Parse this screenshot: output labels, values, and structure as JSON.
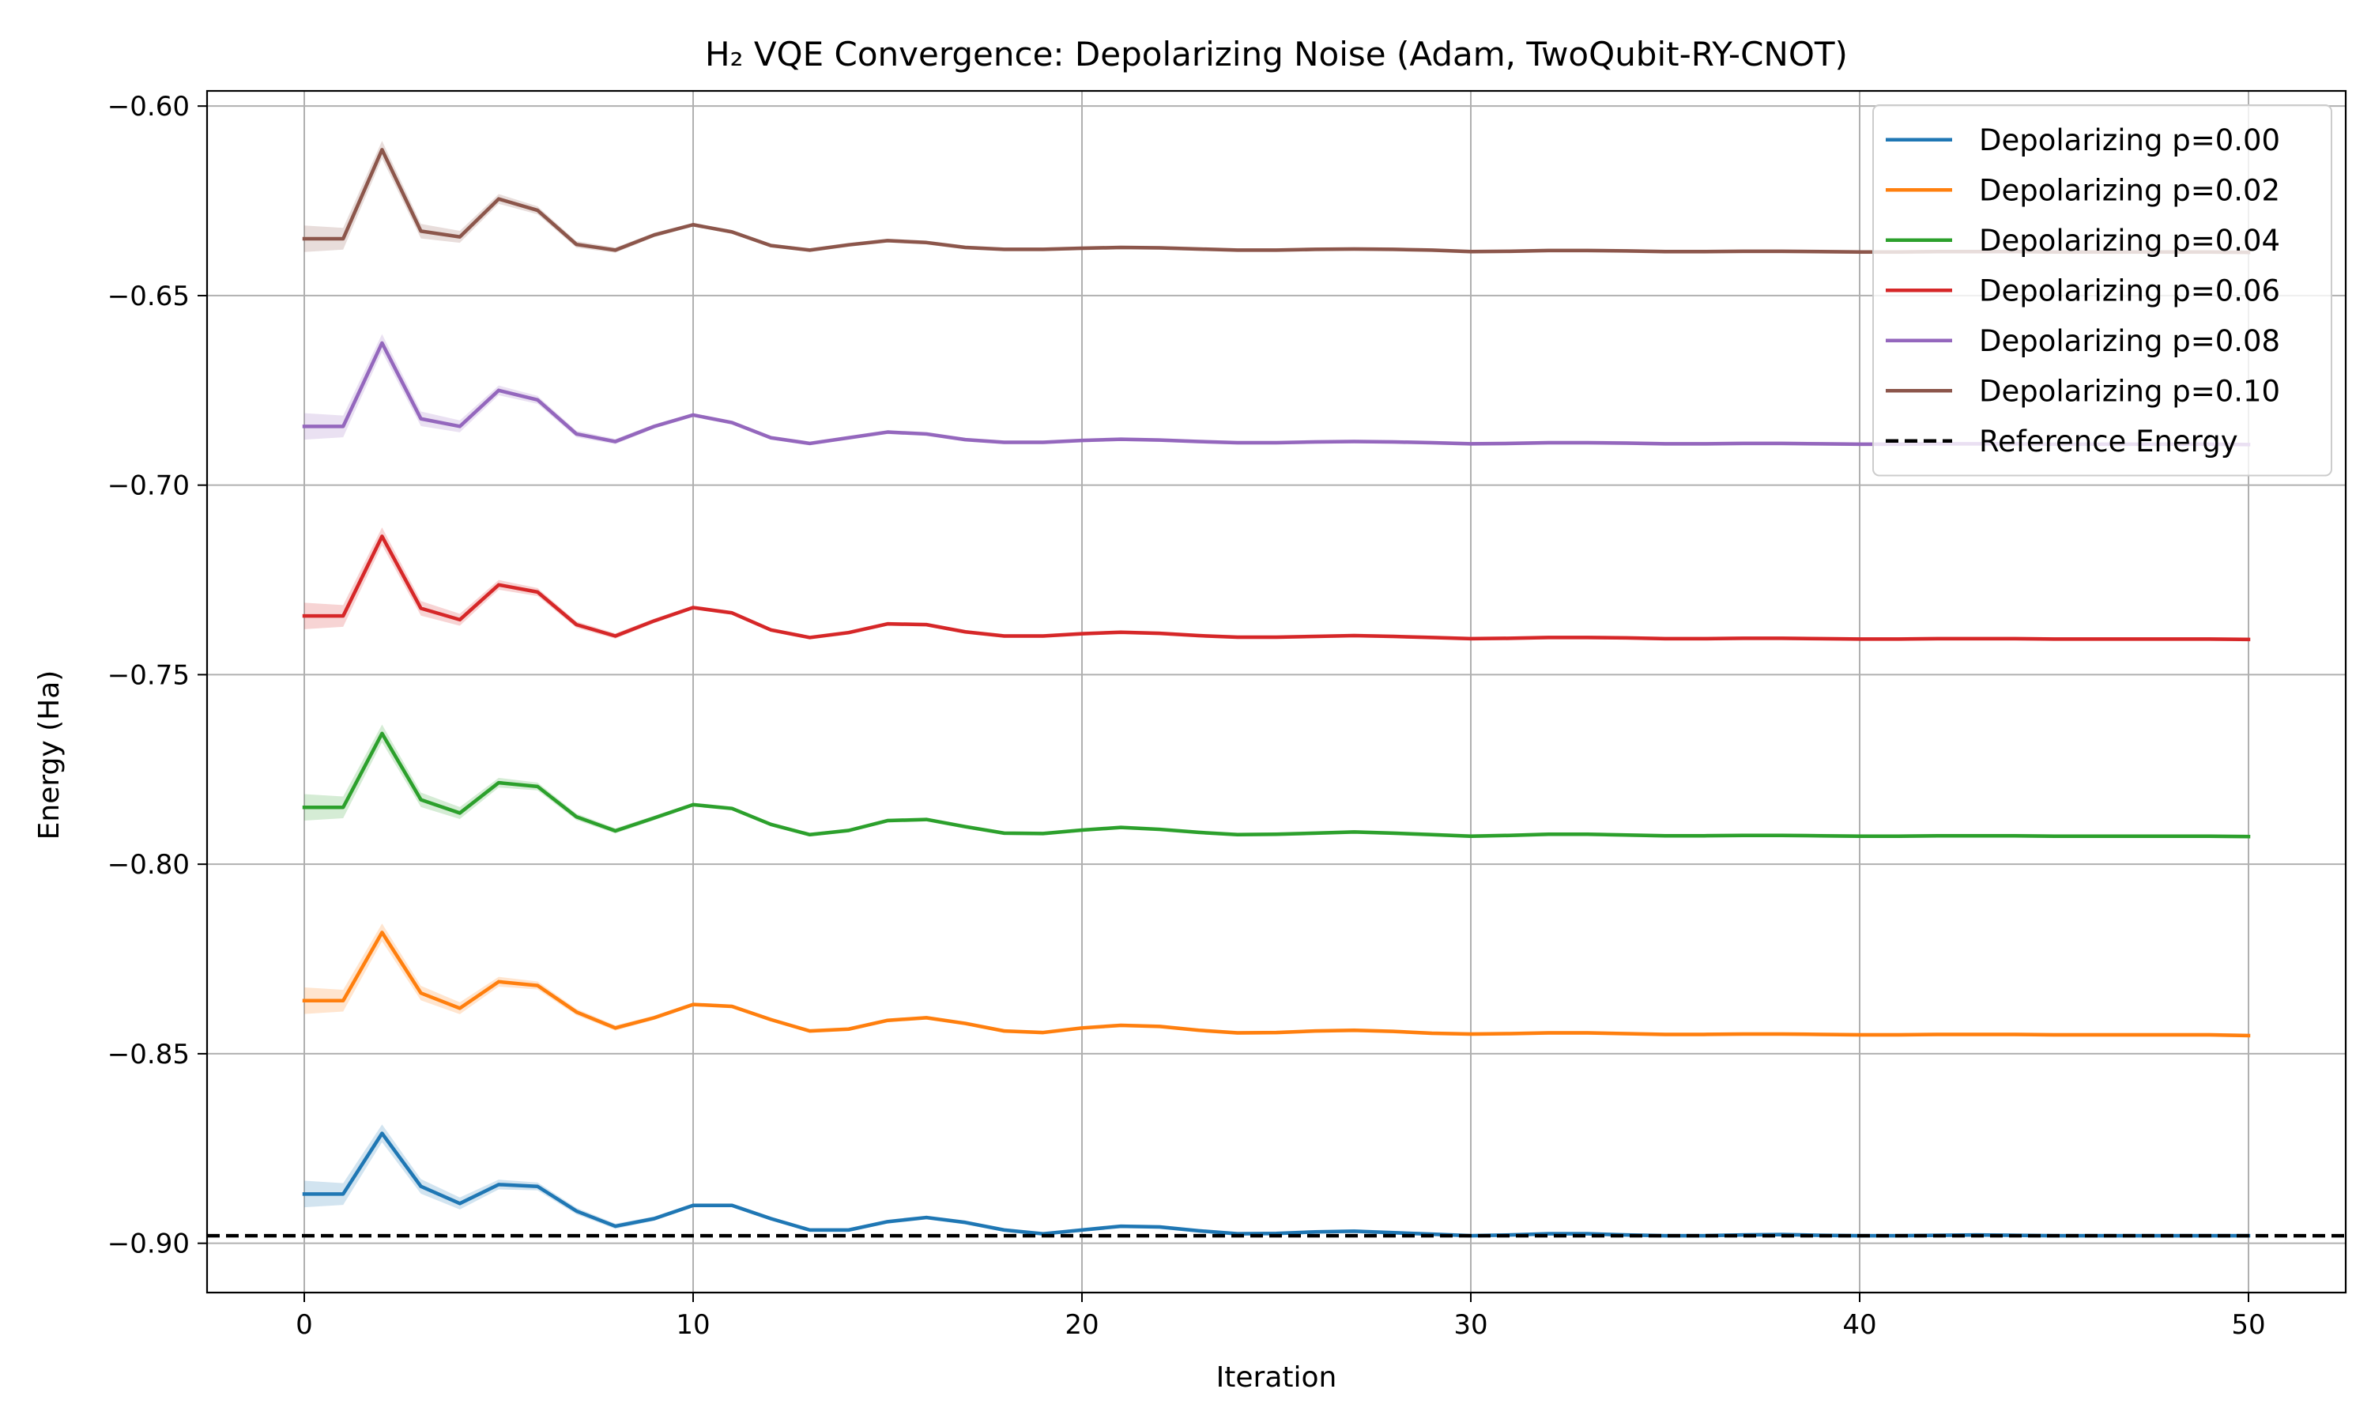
{
  "chart_data": {
    "type": "line",
    "title": "H₂ VQE Convergence: Depolarizing Noise (Adam, TwoQubit-RY-CNOT)",
    "xlabel": "Iteration",
    "ylabel": "Energy (Ha)",
    "xlim": [
      -2.5,
      52.5
    ],
    "ylim": [
      -0.913,
      -0.596
    ],
    "xticks": [
      0,
      10,
      20,
      30,
      40,
      50
    ],
    "yticks": [
      -0.6,
      -0.65,
      -0.7,
      -0.75,
      -0.8,
      -0.85,
      -0.9
    ],
    "xtick_labels": [
      "0",
      "10",
      "20",
      "30",
      "40",
      "50"
    ],
    "ytick_labels": [
      "−0.60",
      "−0.65",
      "−0.70",
      "−0.75",
      "−0.80",
      "−0.85",
      "−0.90"
    ],
    "grid": true,
    "legend_position": "top-right",
    "x": [
      0,
      1,
      2,
      3,
      4,
      5,
      6,
      7,
      8,
      9,
      10,
      11,
      12,
      13,
      14,
      15,
      16,
      17,
      18,
      19,
      20,
      21,
      22,
      23,
      24,
      25,
      26,
      27,
      28,
      29,
      30,
      31,
      32,
      33,
      34,
      35,
      36,
      37,
      38,
      39,
      40,
      41,
      42,
      43,
      44,
      45,
      46,
      47,
      48,
      49,
      50
    ],
    "series": [
      {
        "name": "Depolarizing p=0.00",
        "color": "#1f77b4",
        "values": [
          -0.887,
          -0.887,
          -0.871,
          -0.885,
          -0.8895,
          -0.8845,
          -0.885,
          -0.8915,
          -0.8955,
          -0.8935,
          -0.89,
          -0.89,
          -0.8935,
          -0.8965,
          -0.8965,
          -0.8943,
          -0.8932,
          -0.8945,
          -0.8965,
          -0.8975,
          -0.8965,
          -0.8955,
          -0.8957,
          -0.8967,
          -0.8975,
          -0.8974,
          -0.897,
          -0.8968,
          -0.8972,
          -0.8976,
          -0.898,
          -0.8978,
          -0.8975,
          -0.8975,
          -0.8978,
          -0.898,
          -0.898,
          -0.8978,
          -0.8977,
          -0.8979,
          -0.898,
          -0.898,
          -0.8979,
          -0.8978,
          -0.8979,
          -0.898,
          -0.898,
          -0.898,
          -0.898,
          -0.898,
          -0.898
        ]
      },
      {
        "name": "Depolarizing p=0.02",
        "color": "#ff7f0e",
        "values": [
          -0.836,
          -0.836,
          -0.818,
          -0.834,
          -0.838,
          -0.831,
          -0.832,
          -0.839,
          -0.8432,
          -0.8405,
          -0.837,
          -0.8375,
          -0.841,
          -0.844,
          -0.8435,
          -0.8412,
          -0.8405,
          -0.842,
          -0.844,
          -0.8444,
          -0.8432,
          -0.8425,
          -0.8428,
          -0.8438,
          -0.8445,
          -0.8444,
          -0.844,
          -0.8438,
          -0.8441,
          -0.8446,
          -0.8448,
          -0.8447,
          -0.8445,
          -0.8445,
          -0.8447,
          -0.8449,
          -0.8449,
          -0.8448,
          -0.8448,
          -0.8449,
          -0.845,
          -0.845,
          -0.8449,
          -0.8449,
          -0.8449,
          -0.845,
          -0.845,
          -0.845,
          -0.845,
          -0.845,
          -0.8452
        ]
      },
      {
        "name": "Depolarizing p=0.04",
        "color": "#2ca02c",
        "values": [
          -0.785,
          -0.785,
          -0.7655,
          -0.783,
          -0.7865,
          -0.7785,
          -0.7795,
          -0.7875,
          -0.7912,
          -0.7878,
          -0.7843,
          -0.7853,
          -0.7895,
          -0.7922,
          -0.7911,
          -0.7885,
          -0.7882,
          -0.7901,
          -0.7918,
          -0.7919,
          -0.791,
          -0.7903,
          -0.7908,
          -0.7916,
          -0.7922,
          -0.7921,
          -0.7918,
          -0.7915,
          -0.7918,
          -0.7922,
          -0.7926,
          -0.7924,
          -0.7921,
          -0.7921,
          -0.7923,
          -0.7925,
          -0.7925,
          -0.7924,
          -0.7924,
          -0.7925,
          -0.7926,
          -0.7926,
          -0.7925,
          -0.7925,
          -0.7925,
          -0.7926,
          -0.7926,
          -0.7926,
          -0.7926,
          -0.7926,
          -0.7927
        ]
      },
      {
        "name": "Depolarizing p=0.06",
        "color": "#d62728",
        "values": [
          -0.7345,
          -0.7345,
          -0.7135,
          -0.7325,
          -0.7355,
          -0.7263,
          -0.7282,
          -0.7368,
          -0.7398,
          -0.7358,
          -0.7323,
          -0.7337,
          -0.7382,
          -0.7402,
          -0.7389,
          -0.7366,
          -0.7368,
          -0.7387,
          -0.7398,
          -0.7398,
          -0.7392,
          -0.7388,
          -0.7391,
          -0.7397,
          -0.7401,
          -0.7401,
          -0.7399,
          -0.7397,
          -0.7399,
          -0.7402,
          -0.7405,
          -0.7404,
          -0.7402,
          -0.7402,
          -0.7403,
          -0.7405,
          -0.7405,
          -0.7404,
          -0.7404,
          -0.7405,
          -0.7406,
          -0.7406,
          -0.7405,
          -0.7405,
          -0.7405,
          -0.7406,
          -0.7406,
          -0.7406,
          -0.7406,
          -0.7406,
          -0.7407
        ]
      },
      {
        "name": "Depolarizing p=0.08",
        "color": "#9467bd",
        "values": [
          -0.6845,
          -0.6845,
          -0.6625,
          -0.6825,
          -0.6845,
          -0.675,
          -0.6775,
          -0.6865,
          -0.6885,
          -0.6845,
          -0.6815,
          -0.6835,
          -0.6875,
          -0.689,
          -0.6875,
          -0.686,
          -0.6865,
          -0.688,
          -0.6887,
          -0.6887,
          -0.6882,
          -0.6879,
          -0.6881,
          -0.6885,
          -0.6888,
          -0.6888,
          -0.6886,
          -0.6885,
          -0.6886,
          -0.6888,
          -0.6891,
          -0.689,
          -0.6888,
          -0.6888,
          -0.6889,
          -0.6891,
          -0.6891,
          -0.689,
          -0.689,
          -0.6891,
          -0.6892,
          -0.6892,
          -0.6891,
          -0.6891,
          -0.6891,
          -0.6892,
          -0.6892,
          -0.6892,
          -0.6892,
          -0.6892,
          -0.6893
        ]
      },
      {
        "name": "Depolarizing p=0.10",
        "color": "#8c564b",
        "values": [
          -0.635,
          -0.635,
          -0.6115,
          -0.633,
          -0.6345,
          -0.6245,
          -0.6275,
          -0.6365,
          -0.638,
          -0.634,
          -0.6313,
          -0.6332,
          -0.6368,
          -0.638,
          -0.6366,
          -0.6355,
          -0.636,
          -0.6373,
          -0.6378,
          -0.6378,
          -0.6375,
          -0.6373,
          -0.6374,
          -0.6377,
          -0.638,
          -0.638,
          -0.6378,
          -0.6377,
          -0.6378,
          -0.638,
          -0.6384,
          -0.6383,
          -0.6381,
          -0.6381,
          -0.6382,
          -0.6384,
          -0.6384,
          -0.6383,
          -0.6383,
          -0.6384,
          -0.6385,
          -0.6385,
          -0.6384,
          -0.6384,
          -0.6384,
          -0.6385,
          -0.6385,
          -0.6385,
          -0.6385,
          -0.6385,
          -0.6386
        ]
      }
    ],
    "reference": {
      "name": "Reference Energy",
      "value": -0.898,
      "color": "#000000",
      "style": "dashed"
    }
  }
}
